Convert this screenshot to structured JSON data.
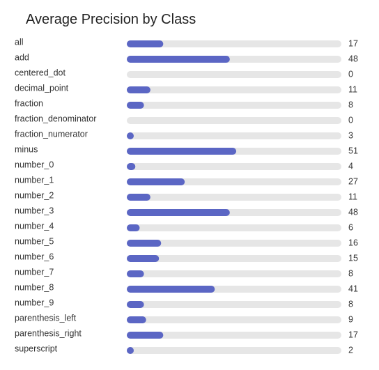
{
  "chart_data": {
    "type": "bar",
    "orientation": "horizontal",
    "title": "Average Precision by Class",
    "xlim": [
      0,
      100
    ],
    "grid": false,
    "legend": "none",
    "categories": [
      "all",
      "add",
      "centered_dot",
      "decimal_point",
      "fraction",
      "fraction_denominator",
      "fraction_numerator",
      "minus",
      "number_0",
      "number_1",
      "number_2",
      "number_3",
      "number_4",
      "number_5",
      "number_6",
      "number_7",
      "number_8",
      "number_9",
      "parenthesis_left",
      "parenthesis_right",
      "superscript"
    ],
    "values": [
      17,
      48,
      0,
      11,
      8,
      0,
      3,
      51,
      4,
      27,
      11,
      48,
      6,
      16,
      15,
      8,
      41,
      8,
      9,
      17,
      2
    ],
    "colors": {
      "bar": "#5b66c4",
      "track": "#e6e6e6",
      "text": "#333333",
      "title": "#222222"
    }
  }
}
